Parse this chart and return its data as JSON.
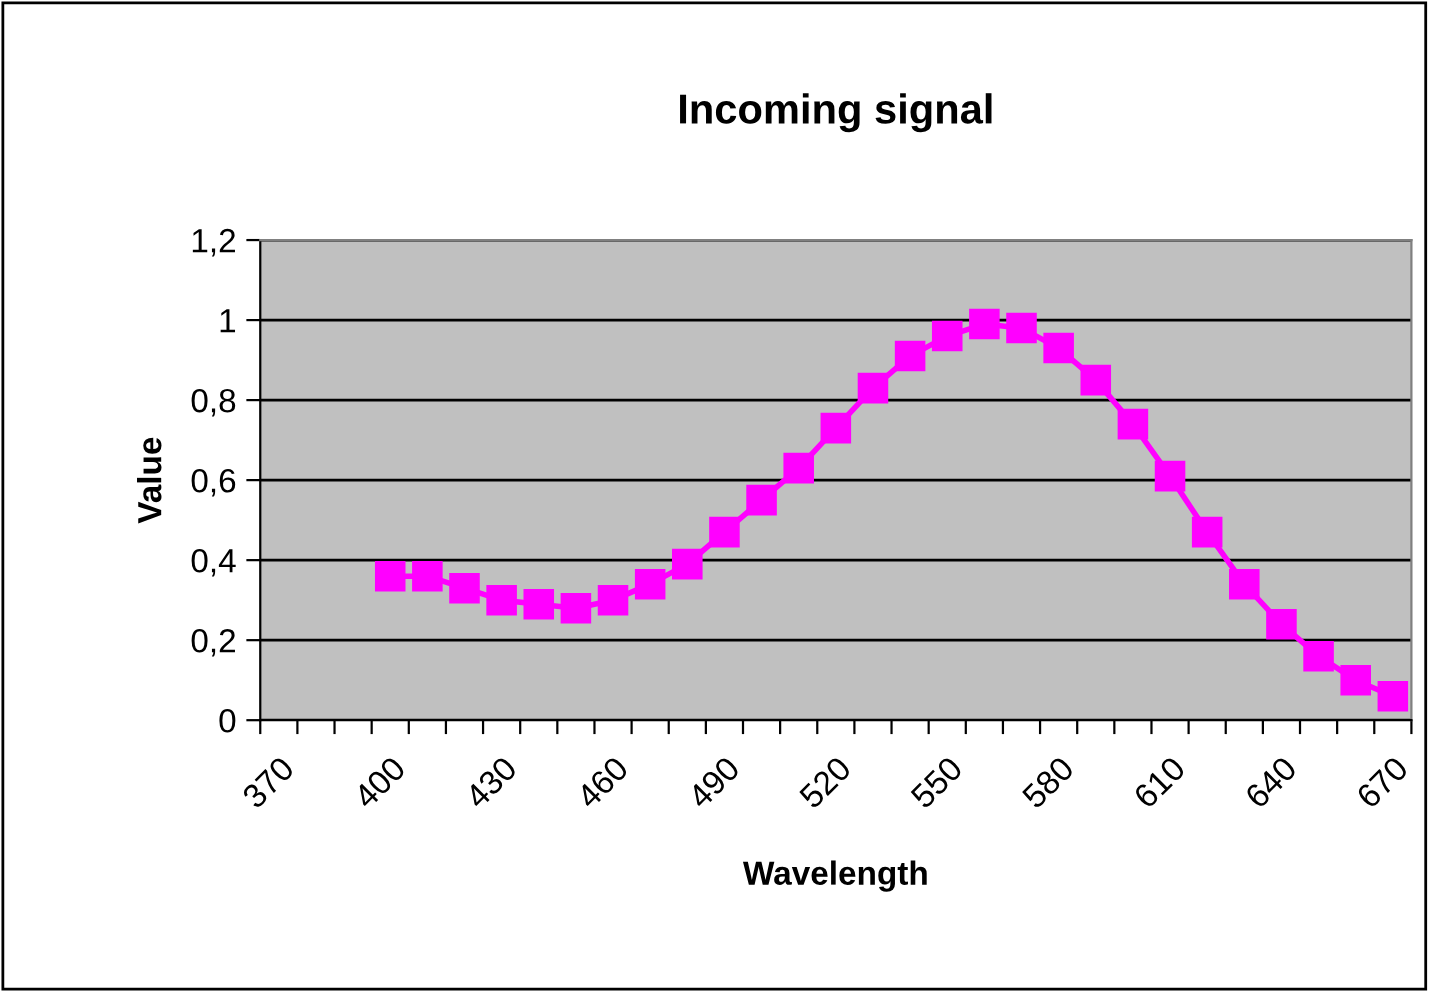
{
  "chart_data": {
    "type": "line",
    "title": "Incoming signal",
    "xlabel": "Wavelength",
    "ylabel": "Value",
    "categories": [
      "370",
      null,
      null,
      "400",
      null,
      null,
      "430",
      null,
      null,
      "460",
      null,
      null,
      "490",
      null,
      null,
      "520",
      null,
      null,
      "550",
      null,
      null,
      "580",
      null,
      null,
      "610",
      null,
      null,
      "640",
      null,
      null,
      "670"
    ],
    "series": [
      {
        "color": "#ff00ff",
        "values": [
          null,
          null,
          null,
          0.36,
          0.36,
          0.33,
          0.3,
          0.29,
          0.28,
          0.3,
          0.34,
          0.39,
          0.47,
          0.55,
          0.63,
          0.73,
          0.83,
          0.91,
          0.96,
          0.99,
          0.98,
          0.93,
          0.85,
          0.74,
          0.61,
          0.47,
          0.34,
          0.24,
          0.16,
          0.1,
          0.06
        ]
      }
    ],
    "ylim": [
      0,
      1.2
    ],
    "yticks": [
      0,
      {
        "value": 0.2,
        "label": "0,2"
      },
      {
        "value": 0.4,
        "label": "0,4"
      },
      {
        "value": 0.6,
        "label": "0,6"
      },
      {
        "value": 0.8,
        "label": "0,8"
      },
      1,
      {
        "value": 1.2,
        "label": "1,2"
      }
    ],
    "grid": "y",
    "marker": "square",
    "line_style": "solid",
    "legend": false
  }
}
